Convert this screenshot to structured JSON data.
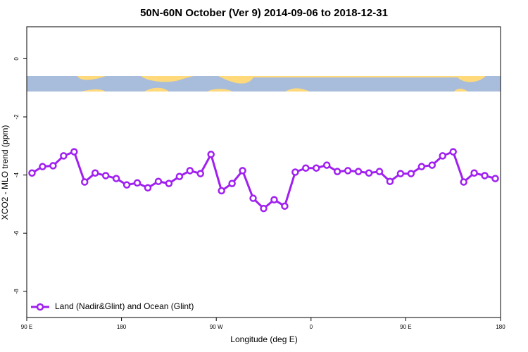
{
  "chart_data": {
    "type": "line",
    "title": "50N-60N October (Ver 9)   2014-09-06 to 2018-12-31",
    "xlabel": "Longitude (deg E)",
    "ylabel": "XCO2 - MLO trend (ppm)",
    "x": [
      95,
      105,
      115,
      125,
      135,
      145,
      155,
      165,
      175,
      185,
      195,
      205,
      215,
      225,
      235,
      245,
      255,
      265,
      275,
      285,
      295,
      305,
      315,
      325,
      335,
      345,
      355,
      365,
      375,
      385,
      395,
      405,
      415,
      425,
      435,
      445,
      455,
      465,
      475,
      485,
      495,
      505,
      515,
      525,
      535
    ],
    "series": [
      {
        "name": "Land (Nadir&Glint) and Ocean (Glint)",
        "color": "#a020f0",
        "values": [
          -3.93,
          -3.71,
          -3.68,
          -3.34,
          -3.2,
          -4.24,
          -3.93,
          -4.02,
          -4.12,
          -4.34,
          -4.27,
          -4.44,
          -4.22,
          -4.29,
          -4.05,
          -3.85,
          -3.95,
          -3.29,
          -4.54,
          -4.29,
          -3.85,
          -4.8,
          -5.15,
          -4.85,
          -5.07,
          -3.9,
          -3.76,
          -3.76,
          -3.66,
          -3.88,
          -3.85,
          -3.88,
          -3.93,
          -3.88,
          -4.22,
          -3.95,
          -3.95,
          -3.71,
          -3.66,
          -3.34,
          -3.2,
          -4.24,
          -3.93,
          -4.02,
          -4.12
        ]
      }
    ],
    "xlim": [
      90,
      540
    ],
    "xticks": [
      {
        "value": 90,
        "label": "90 E"
      },
      180,
      {
        "value": 270,
        "label": "90 W"
      },
      {
        "value": 360,
        "label": "0"
      },
      {
        "value": 450,
        "label": "90 E"
      },
      {
        "value": 540,
        "label": "180"
      }
    ],
    "ylim": [
      -8.9,
      1.1
    ],
    "yticks": [
      0,
      -2,
      -4,
      -6,
      -8
    ],
    "legend": "bottom-left"
  }
}
